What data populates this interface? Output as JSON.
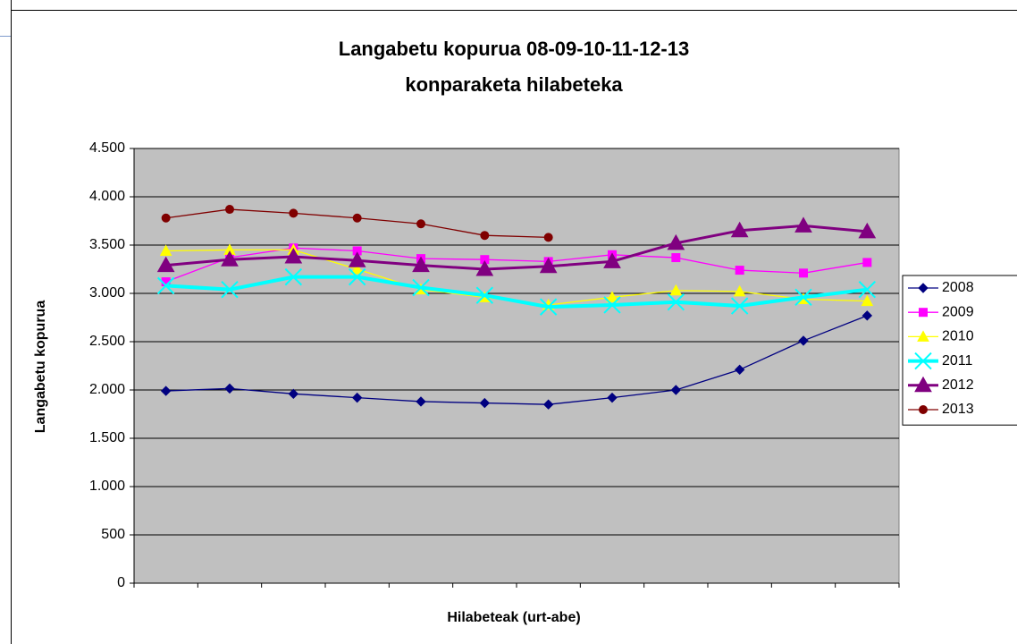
{
  "chart_data": {
    "type": "line",
    "title": [
      "Langabetu kopurua 08-09-10-11-12-13",
      "konparaketa hilabeteka"
    ],
    "x_label": "Hilabeteak (urt-abe)",
    "y_label": "Langabetu kopurua",
    "categories": [
      null,
      null,
      null,
      null,
      null,
      null,
      null,
      null,
      null,
      null,
      null,
      null
    ],
    "ylim": [
      0,
      4500
    ],
    "yticks": [
      0,
      500,
      {
        "value": 1000,
        "label": "1.000"
      },
      {
        "value": 1500,
        "label": "1.500"
      },
      {
        "value": 2000,
        "label": "2.000"
      },
      {
        "value": 2500,
        "label": "2.500"
      },
      {
        "value": 3000,
        "label": "3.000"
      },
      {
        "value": 3500,
        "label": "3.500"
      },
      {
        "value": 4000,
        "label": "4.000"
      },
      {
        "value": 4500,
        "label": "4.500"
      }
    ],
    "grid": true,
    "plot_background": "#c0c0c0",
    "legend": "right",
    "series": [
      {
        "name": "2008",
        "color": "#000080",
        "marker": "diamond",
        "line_width": 1.3,
        "values": [
          1990,
          2015,
          1960,
          1920,
          1880,
          1865,
          1850,
          1920,
          2000,
          2210,
          2510,
          2770
        ]
      },
      {
        "name": "2009",
        "color": "#ff00ff",
        "marker": "square",
        "line_width": 1.3,
        "values": [
          3120,
          3370,
          3470,
          3440,
          3360,
          3350,
          3330,
          3400,
          3370,
          3240,
          3210,
          3320
        ]
      },
      {
        "name": "2010",
        "color": "#ffff00",
        "marker": "triangle",
        "line_width": 1.3,
        "values": [
          3440,
          3450,
          3450,
          3250,
          3040,
          2960,
          2880,
          2960,
          3030,
          3020,
          2940,
          2920
        ]
      },
      {
        "name": "2011",
        "color": "#00ffff",
        "marker": "x",
        "line_width": 4,
        "values": [
          3080,
          3040,
          3170,
          3170,
          3060,
          2980,
          2860,
          2880,
          2910,
          2870,
          2960,
          3040
        ]
      },
      {
        "name": "2012",
        "color": "#800080",
        "marker": "big-triangle",
        "line_width": 3,
        "values": [
          3290,
          3350,
          3380,
          3340,
          3290,
          3250,
          3280,
          3330,
          3520,
          3650,
          3700,
          3640
        ]
      },
      {
        "name": "2013",
        "color": "#800000",
        "marker": "circle",
        "line_width": 1.3,
        "values": [
          3780,
          3870,
          3830,
          3780,
          3720,
          3600,
          3580,
          null,
          null,
          null,
          null,
          null
        ]
      }
    ]
  }
}
